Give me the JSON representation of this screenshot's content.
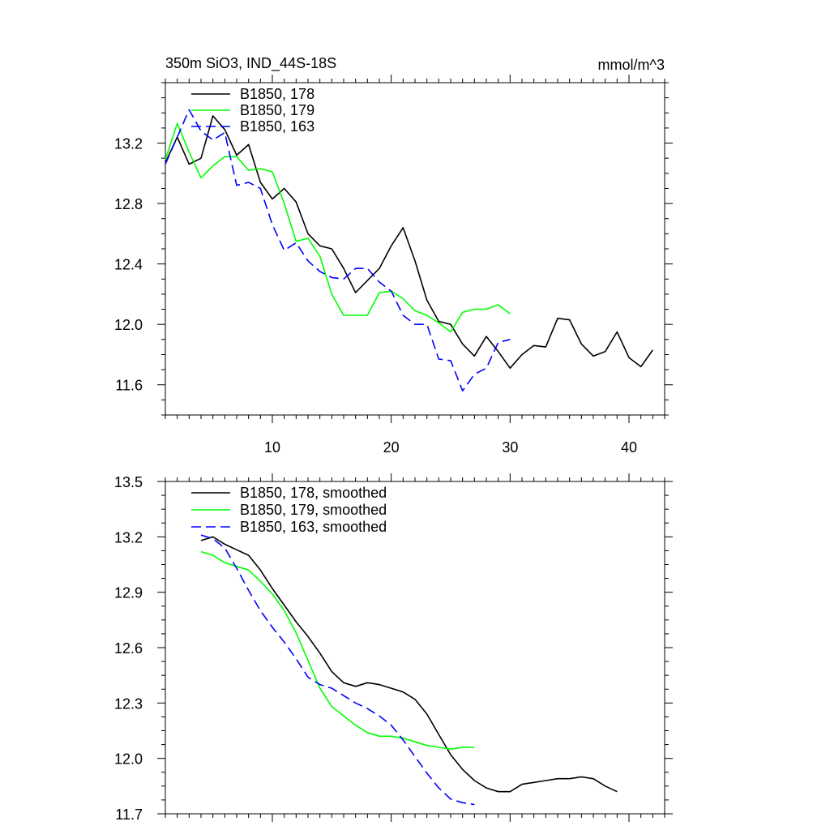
{
  "chart_data": [
    {
      "type": "line",
      "title": "350m SiO3, IND_44S-18S",
      "units_label": "mmol/m^3",
      "xlabel": "",
      "ylabel": "",
      "xlim": [
        1,
        43
      ],
      "ylim": [
        11.4,
        13.6
      ],
      "xticks": [
        10,
        20,
        30,
        40
      ],
      "yticks": [
        11.6,
        12.0,
        12.4,
        12.8,
        13.2
      ],
      "ytick_labels": [
        "11.6",
        "12.0",
        "12.4",
        "12.8",
        "13.2"
      ],
      "xtick_labels": [
        "10",
        "20",
        "30",
        "40"
      ],
      "legend_position": "top-left",
      "series": [
        {
          "name": "B1850, 178",
          "color": "#000000",
          "dash": "solid",
          "x": [
            1,
            2,
            3,
            4,
            5,
            6,
            7,
            8,
            9,
            10,
            11,
            12,
            13,
            14,
            15,
            16,
            17,
            18,
            19,
            20,
            21,
            22,
            23,
            24,
            25,
            26,
            27,
            28,
            29,
            30,
            31,
            32,
            33,
            34,
            35,
            36,
            37,
            38,
            39,
            40,
            41,
            42
          ],
          "values": [
            13.07,
            13.24,
            13.06,
            13.1,
            13.38,
            13.29,
            13.12,
            13.19,
            12.94,
            12.83,
            12.9,
            12.81,
            12.6,
            12.52,
            12.5,
            12.37,
            12.21,
            12.29,
            12.37,
            12.52,
            12.64,
            12.42,
            12.16,
            12.02,
            12.0,
            11.87,
            11.79,
            11.92,
            11.82,
            11.71,
            11.8,
            11.86,
            11.85,
            12.04,
            12.03,
            11.87,
            11.79,
            11.82,
            11.95,
            11.78,
            11.72,
            11.83
          ]
        },
        {
          "name": "B1850, 179",
          "color": "#00ff00",
          "dash": "solid",
          "x": [
            1,
            2,
            3,
            4,
            5,
            6,
            7,
            8,
            9,
            10,
            11,
            12,
            13,
            14,
            15,
            16,
            17,
            18,
            19,
            20,
            21,
            22,
            23,
            24,
            25,
            26,
            27,
            28,
            29,
            30
          ],
          "values": [
            13.09,
            13.33,
            13.14,
            12.97,
            13.05,
            13.11,
            13.11,
            13.02,
            13.03,
            13.01,
            12.8,
            12.55,
            12.57,
            12.45,
            12.2,
            12.06,
            12.06,
            12.06,
            12.21,
            12.22,
            12.17,
            12.09,
            12.06,
            12.01,
            11.95,
            12.08,
            12.1,
            12.1,
            12.13,
            12.07
          ]
        },
        {
          "name": "B1850, 163",
          "color": "#0000ff",
          "dash": "dashed",
          "x": [
            1,
            2,
            3,
            4,
            5,
            6,
            7,
            8,
            9,
            10,
            11,
            12,
            13,
            14,
            15,
            16,
            17,
            18,
            19,
            20,
            21,
            22,
            23,
            24,
            25,
            26,
            27,
            28,
            29,
            30
          ],
          "values": [
            13.06,
            13.24,
            13.42,
            13.28,
            13.22,
            13.27,
            12.92,
            12.94,
            12.9,
            12.66,
            12.49,
            12.54,
            12.42,
            12.35,
            12.31,
            12.3,
            12.37,
            12.37,
            12.28,
            12.22,
            12.06,
            12.0,
            12.0,
            11.77,
            11.76,
            11.56,
            11.67,
            11.71,
            11.88,
            11.9
          ]
        }
      ]
    },
    {
      "type": "line",
      "title": "",
      "xlabel": "",
      "ylabel": "",
      "xlim": [
        1,
        43
      ],
      "ylim": [
        11.7,
        13.5
      ],
      "xticks": [
        10,
        20,
        30,
        40
      ],
      "yticks": [
        11.7,
        12.0,
        12.3,
        12.6,
        12.9,
        13.2,
        13.5
      ],
      "ytick_labels": [
        "11.7",
        "12.0",
        "12.3",
        "12.6",
        "12.9",
        "13.2",
        "13.5"
      ],
      "legend_position": "top-left",
      "series": [
        {
          "name": "B1850, 178, smoothed",
          "color": "#000000",
          "dash": "solid",
          "x": [
            4,
            5,
            6,
            7,
            8,
            9,
            10,
            11,
            12,
            13,
            14,
            15,
            16,
            17,
            18,
            19,
            20,
            21,
            22,
            23,
            24,
            25,
            26,
            27,
            28,
            29,
            30,
            31,
            32,
            33,
            34,
            35,
            36,
            37,
            38,
            39
          ],
          "values": [
            13.18,
            13.2,
            13.16,
            13.13,
            13.1,
            13.02,
            12.92,
            12.83,
            12.74,
            12.66,
            12.57,
            12.47,
            12.41,
            12.39,
            12.41,
            12.4,
            12.38,
            12.36,
            12.32,
            12.24,
            12.13,
            12.02,
            11.94,
            11.88,
            11.84,
            11.82,
            11.82,
            11.86,
            11.87,
            11.88,
            11.89,
            11.89,
            11.9,
            11.89,
            11.85,
            11.82
          ]
        },
        {
          "name": "B1850, 179, smoothed",
          "color": "#00ff00",
          "dash": "solid",
          "x": [
            4,
            5,
            6,
            7,
            8,
            9,
            10,
            11,
            12,
            13,
            14,
            15,
            16,
            17,
            18,
            19,
            20,
            21,
            22,
            23,
            24,
            25,
            26,
            27
          ],
          "values": [
            13.12,
            13.1,
            13.06,
            13.04,
            13.02,
            12.96,
            12.89,
            12.8,
            12.68,
            12.53,
            12.38,
            12.28,
            12.23,
            12.18,
            12.14,
            12.12,
            12.12,
            12.11,
            12.09,
            12.07,
            12.06,
            12.05,
            12.06,
            12.06
          ]
        },
        {
          "name": "B1850, 163, smoothed",
          "color": "#0000ff",
          "dash": "dashed",
          "x": [
            4,
            5,
            6,
            7,
            8,
            9,
            10,
            11,
            12,
            13,
            14,
            15,
            16,
            17,
            18,
            19,
            20,
            21,
            22,
            23,
            24,
            25,
            26,
            27
          ],
          "values": [
            13.21,
            13.19,
            13.14,
            13.03,
            12.91,
            12.8,
            12.71,
            12.63,
            12.54,
            12.44,
            12.4,
            12.38,
            12.34,
            12.3,
            12.27,
            12.23,
            12.18,
            12.1,
            12.01,
            11.92,
            11.84,
            11.78,
            11.76,
            11.75
          ]
        }
      ]
    }
  ]
}
